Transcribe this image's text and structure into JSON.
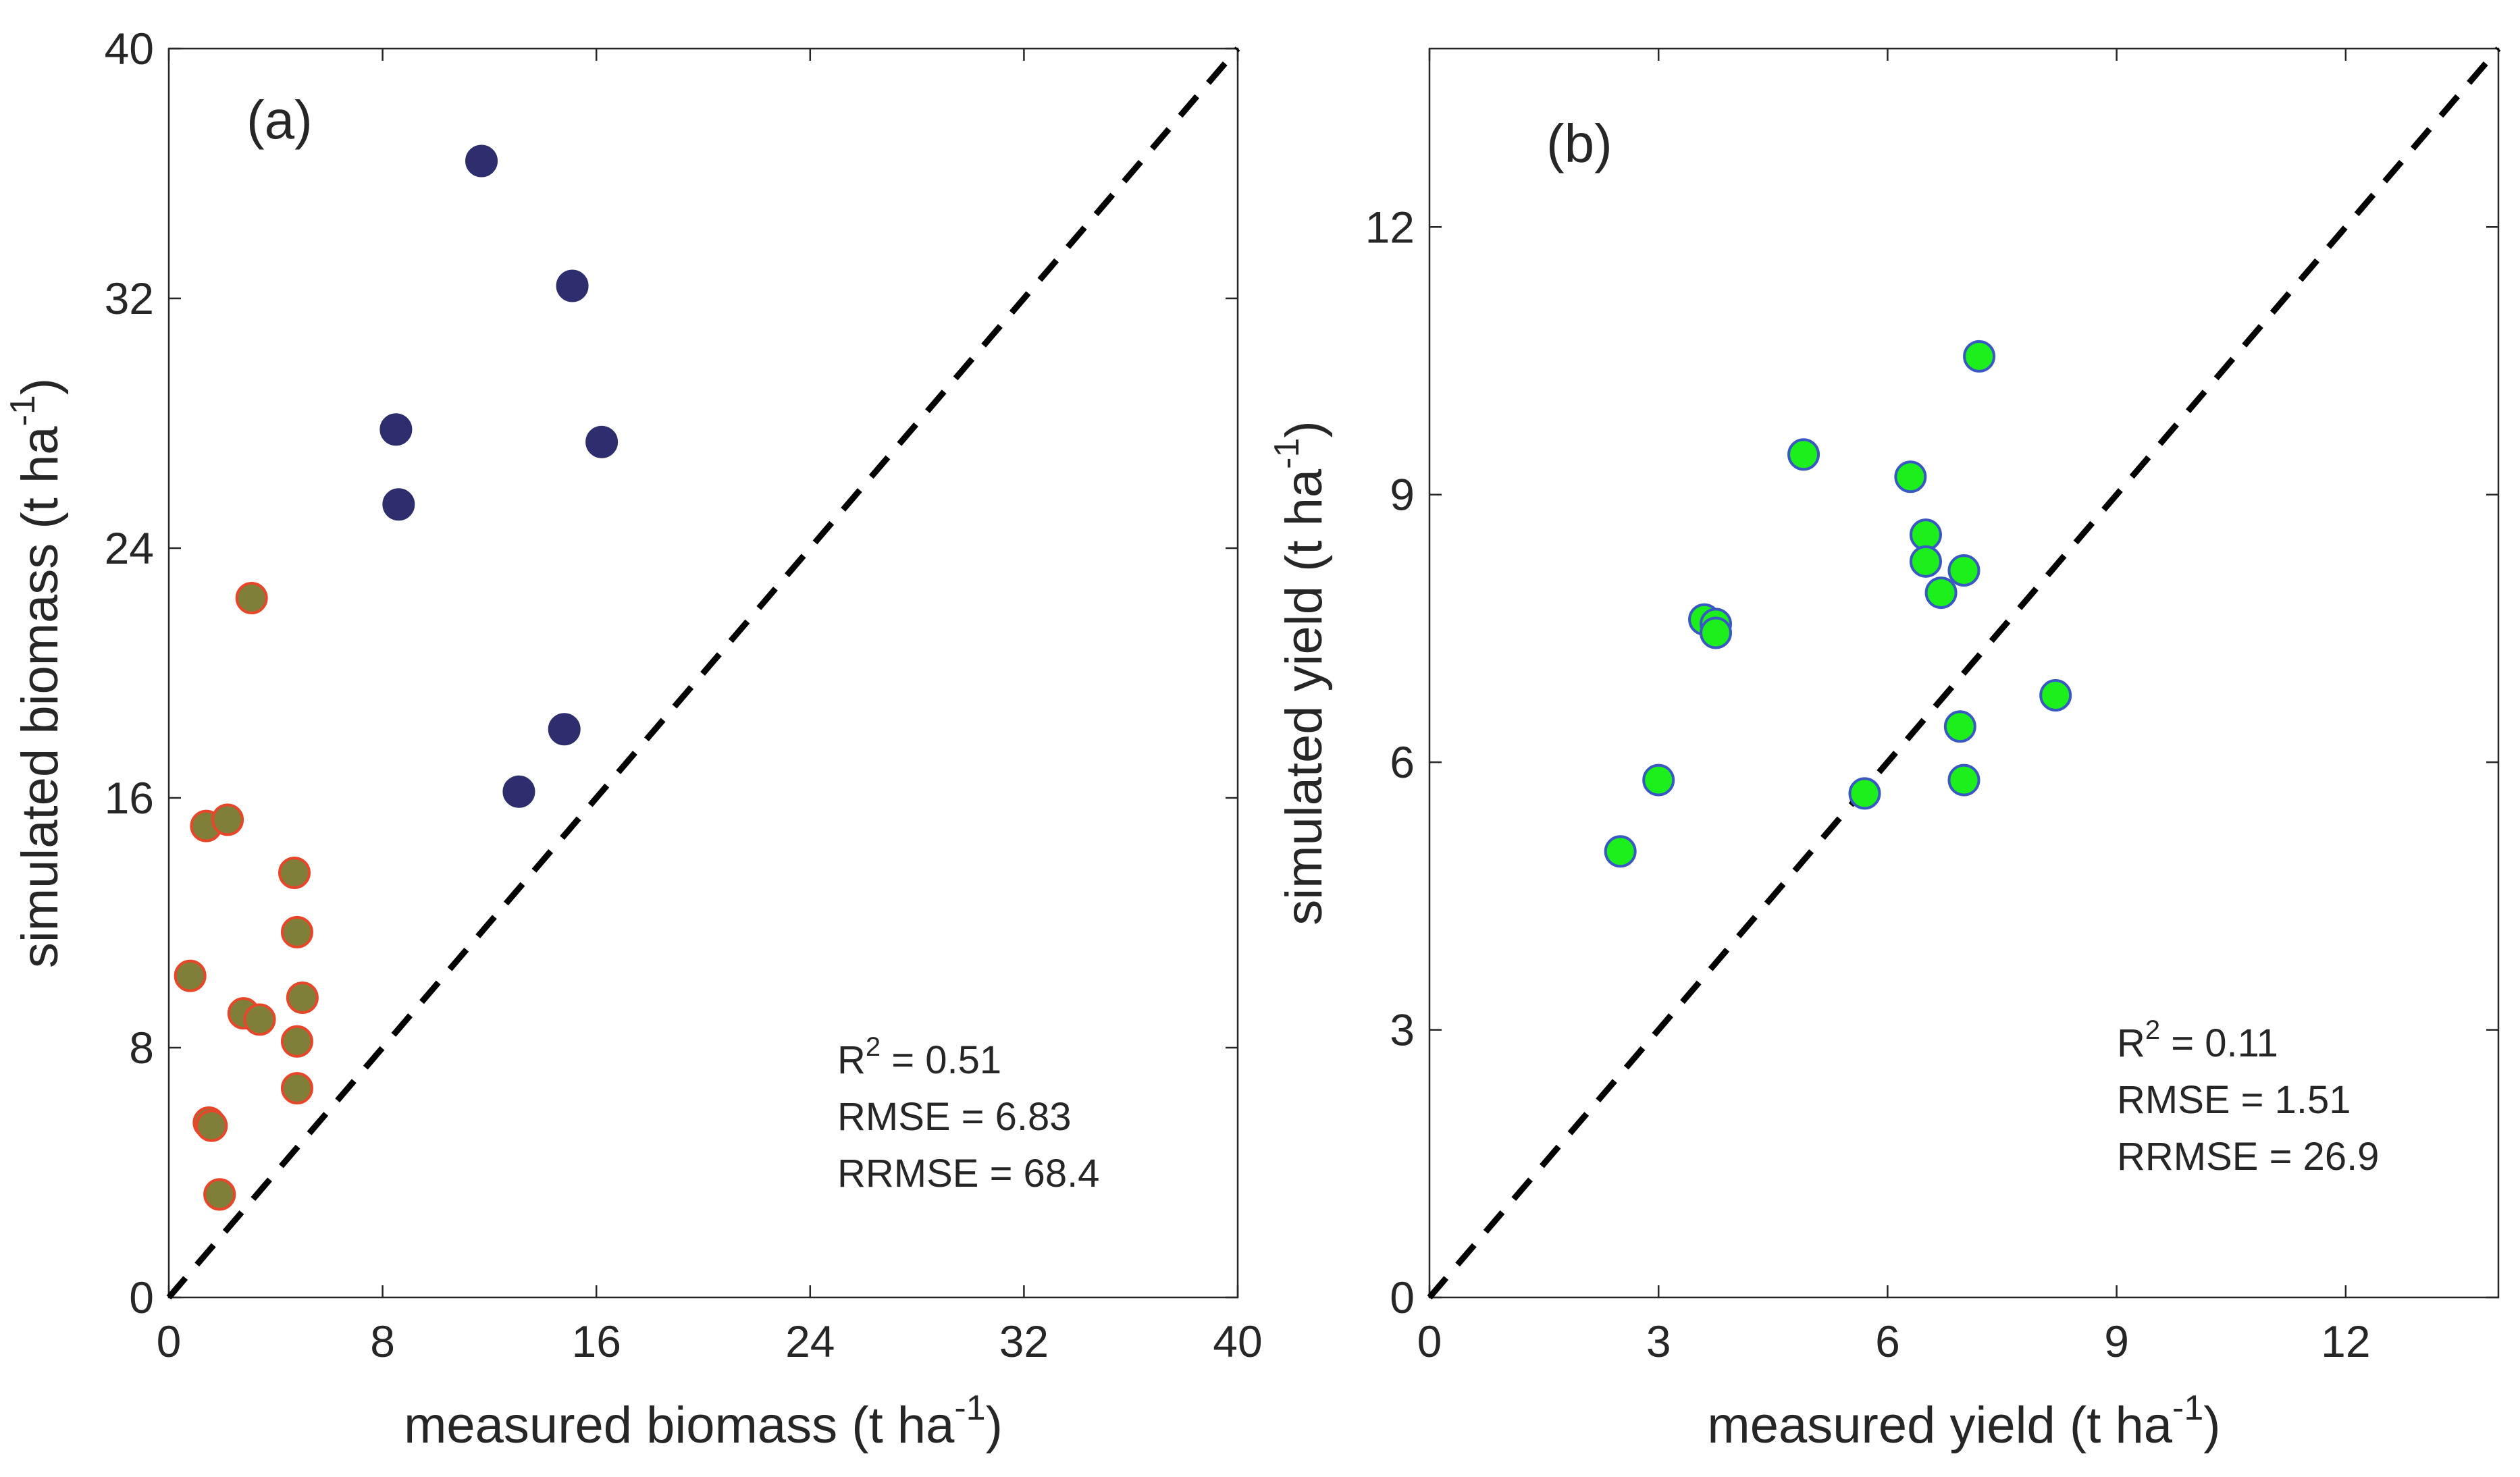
{
  "chart_data": [
    {
      "type": "scatter",
      "panel_label": "(a)",
      "xlabel": {
        "main": "measured biomass (t ha",
        "sup": "-1",
        "tail": ")"
      },
      "ylabel": {
        "main": "simulated biomass (t ha",
        "sup": "-1",
        "tail": ")"
      },
      "xlim": [
        0,
        40
      ],
      "ylim": [
        0,
        40
      ],
      "xticks": [
        "0",
        "8",
        "16",
        "24",
        "32",
        "40"
      ],
      "yticks": [
        "0",
        "8",
        "16",
        "24",
        "32",
        "40"
      ],
      "one_to_one_line": true,
      "stats": [
        {
          "label": "R",
          "sup": "2",
          "rest": " = 0.51"
        },
        {
          "label": "RMSE = 6.83",
          "sup": "",
          "rest": ""
        },
        {
          "label": "RRMSE = 68.4",
          "sup": "",
          "rest": ""
        }
      ],
      "series": [
        {
          "fill": "#7f7f3a",
          "stroke": "#e8462b",
          "x": [
            0.8,
            1.4,
            2.2,
            3.1,
            1.5,
            1.9,
            2.8,
            3.4,
            4.7,
            4.8,
            5.0,
            4.8,
            4.8,
            1.6,
            1.9
          ],
          "y": [
            10.3,
            15.1,
            15.3,
            22.4,
            5.6,
            3.3,
            9.1,
            8.9,
            13.6,
            11.7,
            9.6,
            8.2,
            6.7,
            5.5,
            3.3
          ]
        },
        {
          "fill": "#2e2d6e",
          "stroke": "#2e2d6e",
          "x": [
            11.7,
            15.1,
            8.5,
            8.6,
            16.2,
            14.8,
            13.1
          ],
          "y": [
            36.4,
            32.4,
            27.8,
            25.4,
            27.4,
            18.2,
            16.2
          ]
        }
      ]
    },
    {
      "type": "scatter",
      "panel_label": "(b)",
      "xlabel": {
        "main": "measured yield (t ha",
        "sup": "-1",
        "tail": ")"
      },
      "ylabel": {
        "main": "simulated yield (t ha",
        "sup": "-1",
        "tail": ")"
      },
      "xlim": [
        0,
        14
      ],
      "ylim": [
        0,
        14
      ],
      "xticks": [
        "0",
        "3",
        "6",
        "9",
        "12"
      ],
      "yticks": [
        "0",
        "3",
        "6",
        "9",
        "12"
      ],
      "one_to_one_line": true,
      "stats": [
        {
          "label": "R",
          "sup": "2",
          "rest": " = 0.11"
        },
        {
          "label": "RMSE = 1.51",
          "sup": "",
          "rest": ""
        },
        {
          "label": "RRMSE = 26.9",
          "sup": "",
          "rest": ""
        }
      ],
      "series": [
        {
          "fill": "#1cef1c",
          "stroke": "#3a58c2",
          "x": [
            2.5,
            3.0,
            3.6,
            3.75,
            3.75,
            4.9,
            5.7,
            6.3,
            6.5,
            6.5,
            6.7,
            7.0,
            6.95,
            7.0,
            7.2,
            8.2
          ],
          "y": [
            5.0,
            5.8,
            7.6,
            7.55,
            7.45,
            9.45,
            5.65,
            9.2,
            8.55,
            8.25,
            7.9,
            8.15,
            6.4,
            5.8,
            10.55,
            6.75
          ]
        }
      ]
    }
  ]
}
